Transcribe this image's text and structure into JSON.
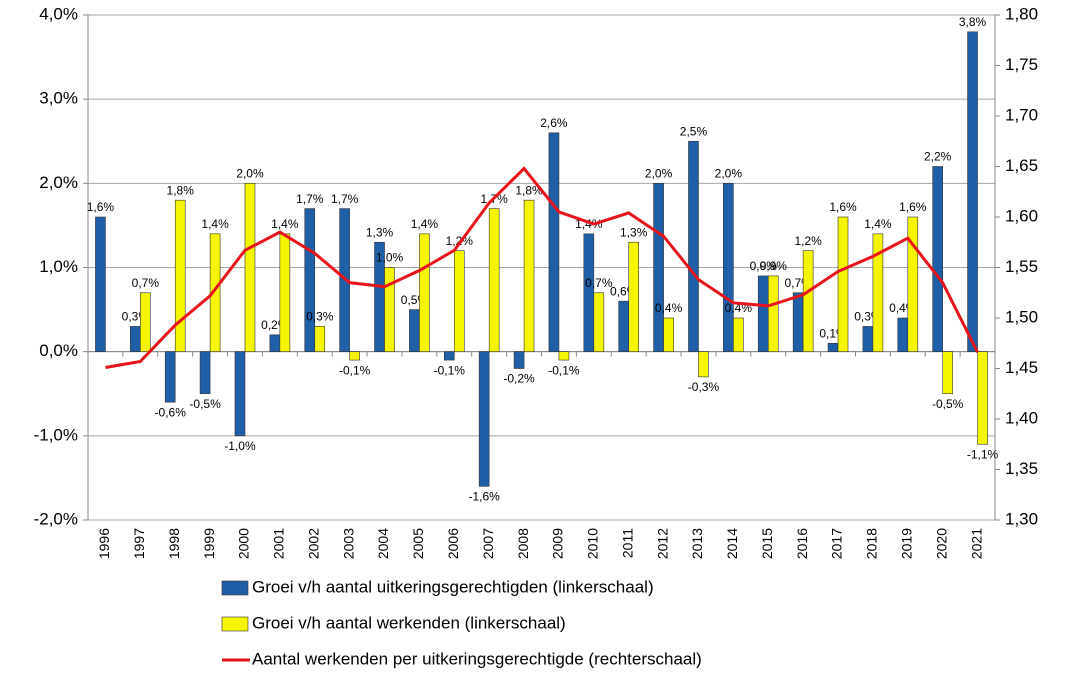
{
  "chart_data": {
    "type": "bar",
    "categories": [
      "1996",
      "1997",
      "1998",
      "1999",
      "2000",
      "2001",
      "2002",
      "2003",
      "2004",
      "2005",
      "2006",
      "2007",
      "2008",
      "2009",
      "2010",
      "2011",
      "2012",
      "2013",
      "2014",
      "2015",
      "2016",
      "2017",
      "2018",
      "2019",
      "2020",
      "2021"
    ],
    "series": [
      {
        "name": "Groei v/h aantal uitkeringsgerechtigden (linkerschaal)",
        "color": "#1f5fa8",
        "values": [
          1.6,
          0.3,
          -0.6,
          -0.5,
          -1.0,
          0.2,
          1.7,
          1.7,
          1.3,
          0.5,
          -0.1,
          -1.6,
          -0.2,
          2.6,
          1.4,
          0.6,
          2.0,
          2.5,
          2.0,
          0.9,
          0.7,
          0.1,
          0.3,
          0.4,
          2.2,
          3.8
        ],
        "value_labels": [
          "1,6%",
          "0,3%",
          "-0,6%",
          "-0,5%",
          "-1,0%",
          "0,2%",
          "1,7%",
          "1,7%",
          "1,3%",
          "0,5%",
          "-0,1%",
          "-1,6%",
          "-0,2%",
          "2,6%",
          "1,4%",
          "0,6%",
          "2,0%",
          "2,5%",
          "2,0%",
          "0,9%",
          "0,7%",
          "0,1%",
          "0,3%",
          "0,4%",
          "2,2%",
          "3,8%"
        ]
      },
      {
        "name": "Groei v/h aantal werkenden (linkerschaal)",
        "color": "#f5f500",
        "values": [
          null,
          0.7,
          1.8,
          1.4,
          2.0,
          1.4,
          0.3,
          -0.1,
          1.0,
          1.4,
          1.2,
          1.7,
          1.8,
          -0.1,
          0.7,
          1.3,
          0.4,
          -0.3,
          0.4,
          0.9,
          1.2,
          1.6,
          1.4,
          1.6,
          -0.5,
          -1.1
        ],
        "value_labels": [
          null,
          "0,7%",
          "1,8%",
          "1,4%",
          "2,0%",
          "1,4%",
          "0,3%",
          "-0,1%",
          "1,0%",
          "1,4%",
          "1,2%",
          "1,7%",
          "1,8%",
          "-0,1%",
          "0,7%",
          "1,3%",
          "0,4%",
          "-0,3%",
          "0,4%",
          "0,9%",
          "1,2%",
          "1,6%",
          "1,4%",
          "1,6%",
          "-0,5%",
          "-1,1%"
        ]
      },
      {
        "name": "Aantal werkenden per uitkeringsgerechtigde (rechterschaal)",
        "color": "#e8141b",
        "type": "line",
        "axis": "y2",
        "values": [
          1.451,
          1.457,
          1.493,
          1.522,
          1.567,
          1.585,
          1.564,
          1.535,
          1.531,
          1.547,
          1.567,
          1.614,
          1.648,
          1.605,
          1.593,
          1.604,
          1.581,
          1.538,
          1.515,
          1.512,
          1.523,
          1.546,
          1.561,
          1.579,
          1.535,
          1.466
        ]
      }
    ],
    "ylim": [
      -2.0,
      4.0
    ],
    "yticks": [
      {
        "value": -2.0,
        "label": "-2,0%"
      },
      {
        "value": -1.0,
        "label": "-1,0%"
      },
      {
        "value": 0.0,
        "label": "0,0%"
      },
      {
        "value": 1.0,
        "label": "1,0%"
      },
      {
        "value": 2.0,
        "label": "2,0%"
      },
      {
        "value": 3.0,
        "label": "3,0%"
      },
      {
        "value": 4.0,
        "label": "4,0%"
      }
    ],
    "y2lim": [
      1.3,
      1.8
    ],
    "y2ticks": [
      {
        "value": 1.3,
        "label": "1,30"
      },
      {
        "value": 1.35,
        "label": "1,35"
      },
      {
        "value": 1.4,
        "label": "1,40"
      },
      {
        "value": 1.45,
        "label": "1,45"
      },
      {
        "value": 1.5,
        "label": "1,50"
      },
      {
        "value": 1.55,
        "label": "1,55"
      },
      {
        "value": 1.6,
        "label": "1,60"
      },
      {
        "value": 1.65,
        "label": "1,65"
      },
      {
        "value": 1.7,
        "label": "1,70"
      },
      {
        "value": 1.75,
        "label": "1,75"
      },
      {
        "value": 1.8,
        "label": "1,80"
      }
    ],
    "grid": true,
    "legend": "bottom"
  }
}
